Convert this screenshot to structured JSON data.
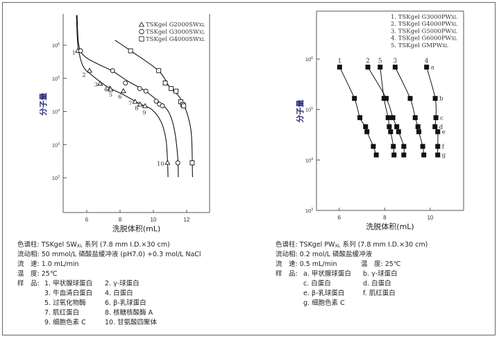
{
  "chart_data": [
    {
      "type": "scatter",
      "xlabel": "洗脱体积(mL)",
      "ylabel": "分子量",
      "xticks": [
        6,
        8,
        10,
        12
      ],
      "yticks": [
        {
          "base": "10",
          "exp": "6",
          "value": 1000000
        },
        {
          "base": "10",
          "exp": "5",
          "value": 100000
        },
        {
          "base": "10",
          "exp": "4",
          "value": 10000
        },
        {
          "base": "10",
          "exp": "3",
          "value": 1000
        },
        {
          "base": "10",
          "exp": "2",
          "value": 100
        }
      ],
      "xlim": [
        4.6,
        13.4
      ],
      "ylim": [
        10,
        8000000
      ],
      "yscale": "log",
      "grid": false,
      "legend_position": "top-right",
      "series": [
        {
          "name": "TSKgel G2000SW",
          "name_sub": "XL",
          "marker": "triangle",
          "points": [
            [
              5.47,
              676000
            ],
            [
              6.17,
              170000
            ],
            [
              6.8,
              69000
            ],
            [
              7.39,
              49000
            ],
            [
              7.43,
              46000
            ],
            [
              8.2,
              41000
            ],
            [
              8.9,
              19500
            ],
            [
              9.2,
              16200
            ],
            [
              9.5,
              14500
            ],
            [
              10.85,
              282
            ]
          ],
          "labels": [
            "1",
            "2",
            "3",
            "4",
            "5",
            "6",
            "7",
            "8",
            "9",
            "10"
          ],
          "curve": [
            [
              5.38,
              8000000
            ],
            [
              5.45,
              1200000
            ],
            [
              5.55,
              550000
            ],
            [
              5.8,
              220000
            ],
            [
              6.3,
              125000
            ],
            [
              7.2,
              57000
            ],
            [
              8.2,
              32000
            ],
            [
              9.2,
              17000
            ],
            [
              9.9,
              11500
            ],
            [
              10.45,
              5000
            ],
            [
              10.75,
              1500
            ],
            [
              10.85,
              300
            ],
            [
              10.88,
              105
            ]
          ]
        },
        {
          "name": "TSKgel G3000SW",
          "name_sub": "XL",
          "marker": "circle",
          "points": [
            [
              5.63,
              676000
            ],
            [
              7.55,
              170000
            ],
            [
              8.32,
              72000
            ],
            [
              9.18,
              49000
            ],
            [
              9.55,
              41000
            ],
            [
              10.17,
              20400
            ],
            [
              10.36,
              16600
            ],
            [
              10.54,
              14800
            ],
            [
              11.47,
              282
            ]
          ],
          "curve": [
            [
              5.42,
              8000000
            ],
            [
              5.48,
              1500000
            ],
            [
              5.6,
              700000
            ],
            [
              5.8,
              500000
            ],
            [
              6.1,
              380000
            ],
            [
              6.8,
              250000
            ],
            [
              7.55,
              165000
            ],
            [
              8.5,
              80000
            ],
            [
              9.5,
              42000
            ],
            [
              10.3,
              20000
            ],
            [
              10.9,
              10000
            ],
            [
              11.25,
              3000
            ],
            [
              11.45,
              500
            ],
            [
              11.5,
              105
            ]
          ]
        },
        {
          "name": "TSKgel G4000SW",
          "name_sub": "XL",
          "marker": "square",
          "points": [
            [
              8.63,
              676000
            ],
            [
              10.32,
              170000
            ],
            [
              10.71,
              72000
            ],
            [
              11.07,
              49000
            ],
            [
              11.36,
              41000
            ],
            [
              11.65,
              19500
            ],
            [
              11.76,
              16200
            ],
            [
              11.82,
              14800
            ],
            [
              12.33,
              282
            ]
          ],
          "curve": [
            [
              7.7,
              1400000
            ],
            [
              8.63,
              680000
            ],
            [
              10.3,
              170000
            ],
            [
              11.0,
              52000
            ],
            [
              11.5,
              30000
            ],
            [
              11.85,
              15000
            ],
            [
              12.15,
              5200
            ],
            [
              12.3,
              1500
            ],
            [
              12.35,
              105
            ]
          ]
        }
      ]
    },
    {
      "type": "line",
      "xlabel": "洗脱体积(mL)",
      "ylabel": "分子量",
      "xticks": [
        6,
        8,
        10
      ],
      "yticks": [
        {
          "base": "10",
          "exp": "6",
          "value": 1000000
        },
        {
          "base": "10",
          "exp": "5",
          "value": 100000
        },
        {
          "base": "10",
          "exp": "4",
          "value": 10000
        },
        {
          "base": "10",
          "exp": "3",
          "value": 1000
        }
      ],
      "xlim": [
        5.0,
        11.45
      ],
      "ylim": [
        1000,
        8700000
      ],
      "yscale": "log",
      "grid": false,
      "legend_position": "top-right",
      "legend": [
        {
          "text": "1. TSKgel G3000PW",
          "sub": "XL"
        },
        {
          "text": "2. TSKgel G4000PW",
          "sub": "XL"
        },
        {
          "text": "3. TSKgel G5000PW",
          "sub": "XL"
        },
        {
          "text": "4. TSKgel G6000PW",
          "sub": "XL"
        },
        {
          "text": "5. TSKgel GMPW",
          "sub": "XL"
        }
      ],
      "sample_labels": [
        "a",
        "b",
        "c",
        "d",
        "e",
        "f",
        "g"
      ],
      "y_values": [
        692000,
        166000,
        69000,
        45700,
        36300,
        18600,
        12600
      ],
      "series": [
        {
          "name": "1",
          "x": [
            6.02,
            6.67,
            6.91,
            7.16,
            7.22,
            7.5,
            7.63
          ]
        },
        {
          "name": "2",
          "x": [
            7.26,
            8.07,
            8.36,
            8.53,
            8.61,
            8.84,
            8.84
          ]
        },
        {
          "name": "5",
          "x": [
            7.8,
            7.97,
            8.15,
            8.2,
            8.26,
            8.38,
            8.41
          ]
        },
        {
          "name": "3",
          "x": [
            8.46,
            9.12,
            9.34,
            9.46,
            9.5,
            9.67,
            9.72
          ]
        },
        {
          "name": "4",
          "x": [
            9.84,
            10.22,
            10.25,
            10.21,
            10.33,
            10.33,
            10.33
          ]
        }
      ]
    }
  ],
  "colors": {
    "axis": "#555555",
    "ink": "#111111",
    "label_purple": "#6a2a6a",
    "ylabel_blue": "#2a2a7a"
  },
  "left_info": {
    "column_label": "色谱柱:",
    "column_value": "TSKgel SW",
    "column_sub": "XL",
    "column_rest": " 系列 (7.8 mm I.D.×30 cm)",
    "mobile_label": "流动相:",
    "mobile_value": "50 mmol/L 磷酸盐缓冲液 (pH7.0) +0.3 mol/L NaCl",
    "flow_label": "流　速:",
    "flow_value": "1.0 mL/min",
    "temp_label": "温　度:",
    "temp_value": "25℃",
    "sample_label": "样　品:",
    "samples": [
      "1. 甲状腺球蛋白",
      "2. γ-球蛋白",
      "3. 牛血清白蛋白",
      "4. 白蛋白",
      "5. 过氧化物酶",
      "6. β-乳球蛋白",
      "7. 肌红蛋白",
      "8. 核糖核酸酶 A",
      "9. 细胞色素 C",
      "10. 甘氨酸四聚体"
    ]
  },
  "right_info": {
    "column_label": "色谱柱:",
    "column_value": "TSKgel PW",
    "column_sub": "XL",
    "column_rest": " 系列 (7.8 mm I.D.×30 cm)",
    "mobile_label": "流动相:",
    "mobile_value": "0.2 mol/L 磷酸盐缓冲液",
    "flow_label": "流　速:",
    "flow_value": "0.5 mL/min",
    "temp_label": "温　度:",
    "temp_value": "25℃",
    "sample_label": "样　品:",
    "samples": [
      "a. 甲状腺球蛋白",
      "b. γ-球蛋白",
      "c. 白蛋白",
      "d. 白蛋白",
      "e. β-乳球蛋白",
      "f. 肌红蛋白",
      "g. 细胞色素 C"
    ]
  }
}
